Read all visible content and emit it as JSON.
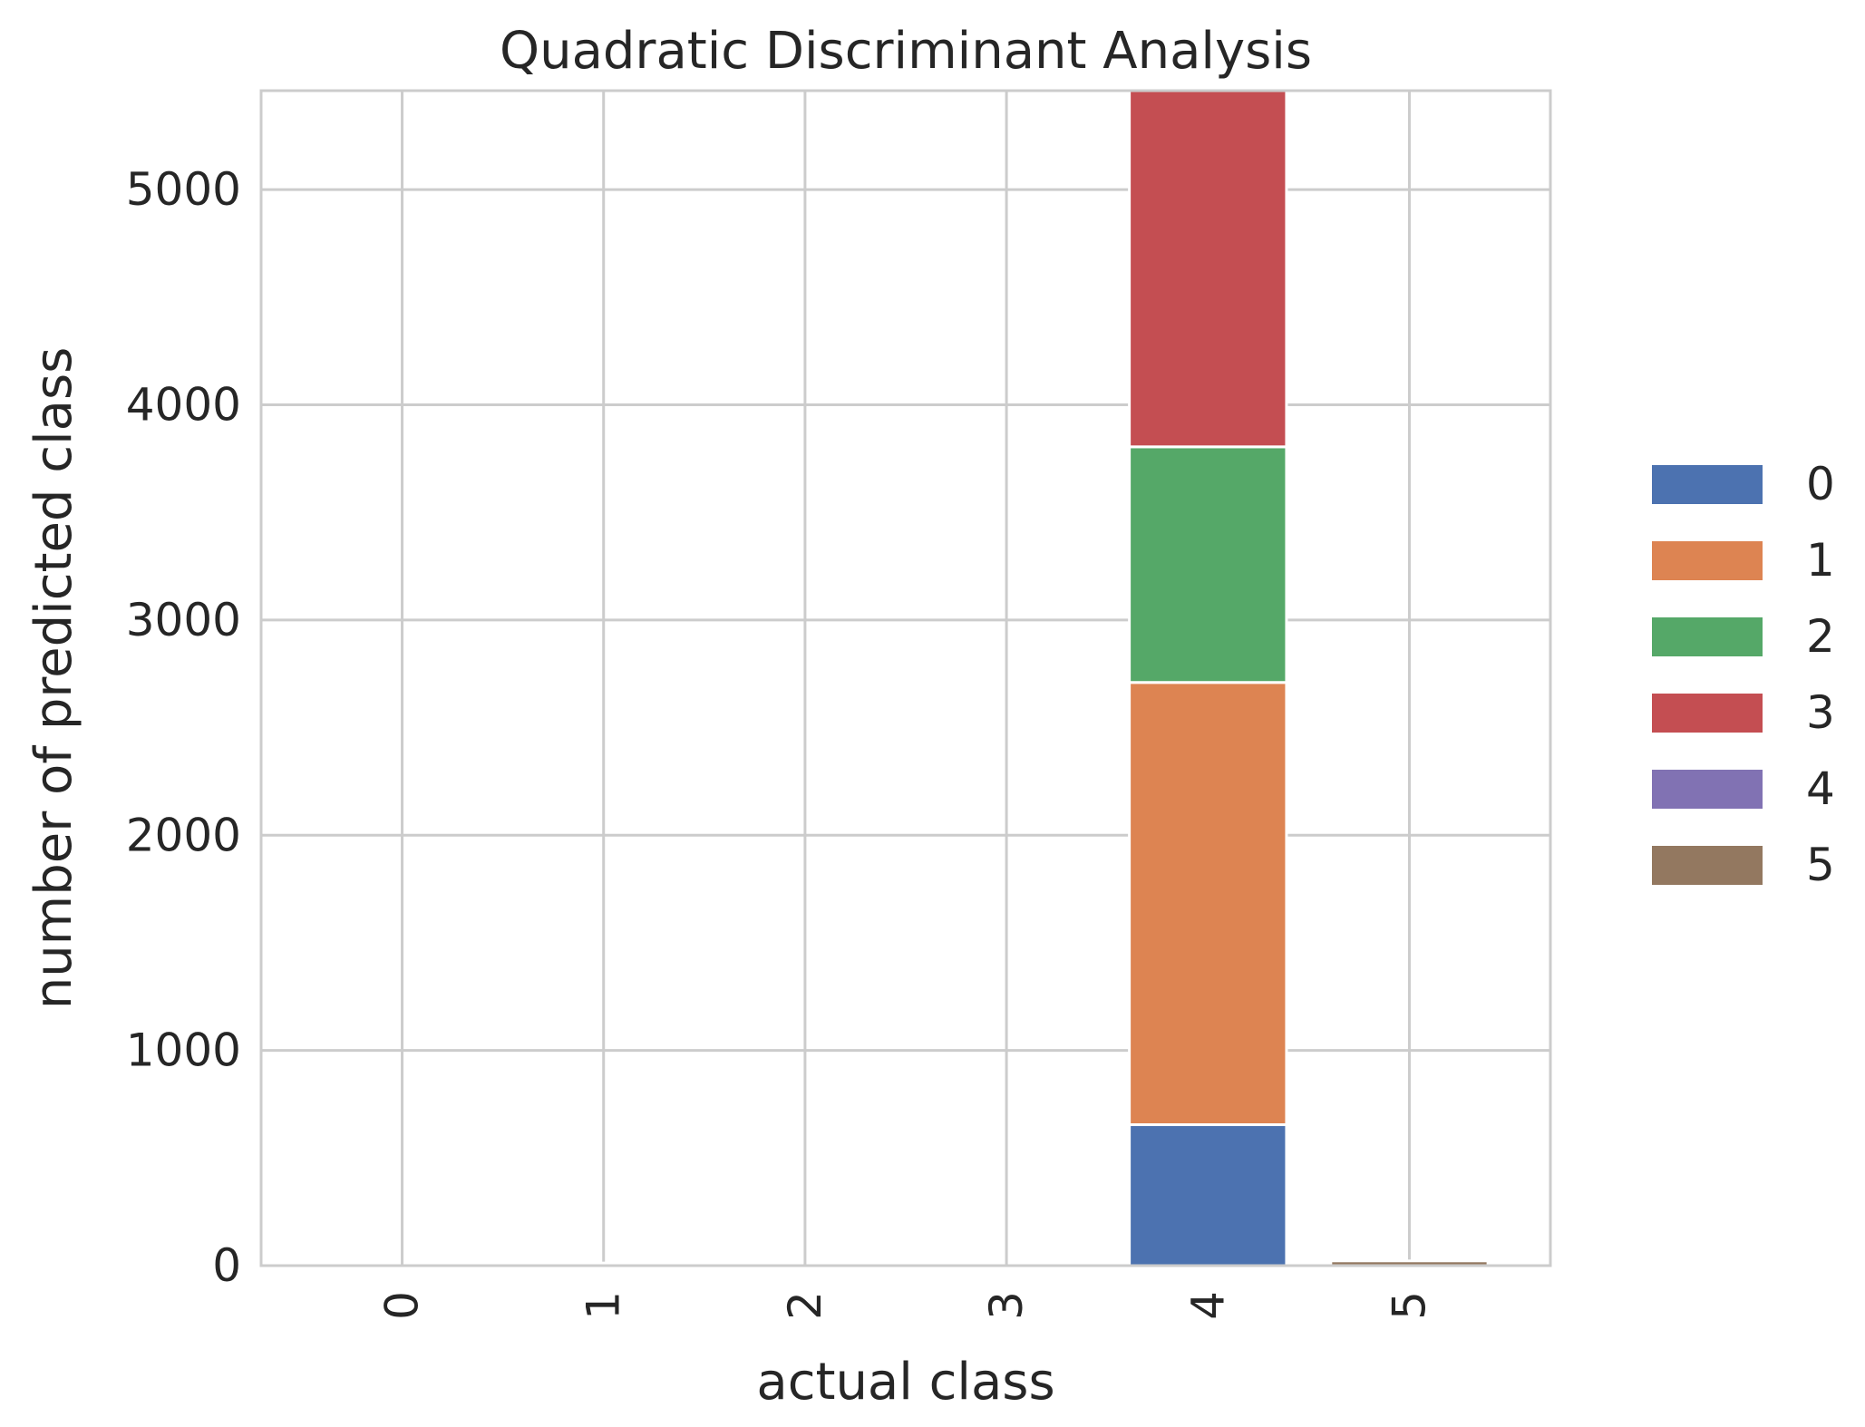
{
  "chart_data": {
    "type": "bar",
    "stacked": true,
    "title": "Quadratic Discriminant Analysis",
    "xlabel": "actual class",
    "ylabel": "number of predicted class",
    "categories": [
      "0",
      "1",
      "2",
      "3",
      "4",
      "5"
    ],
    "ylim": [
      0,
      5460
    ],
    "yticks": [
      0,
      1000,
      2000,
      3000,
      4000,
      5000
    ],
    "grid": true,
    "legend_position": "right",
    "series": [
      {
        "name": "0",
        "color": "#4c72b0",
        "values": [
          0,
          0,
          0,
          0,
          655,
          0
        ]
      },
      {
        "name": "1",
        "color": "#dd8452",
        "values": [
          0,
          12,
          0,
          0,
          2055,
          0
        ]
      },
      {
        "name": "2",
        "color": "#55a868",
        "values": [
          0,
          0,
          0,
          0,
          1095,
          0
        ]
      },
      {
        "name": "3",
        "color": "#c44e52",
        "values": [
          0,
          0,
          0,
          0,
          1655,
          0
        ]
      },
      {
        "name": "4",
        "color": "#8172b3",
        "values": [
          0,
          0,
          0,
          0,
          0,
          0
        ]
      },
      {
        "name": "5",
        "color": "#937860",
        "values": [
          0,
          0,
          0,
          0,
          0,
          22
        ]
      }
    ]
  }
}
